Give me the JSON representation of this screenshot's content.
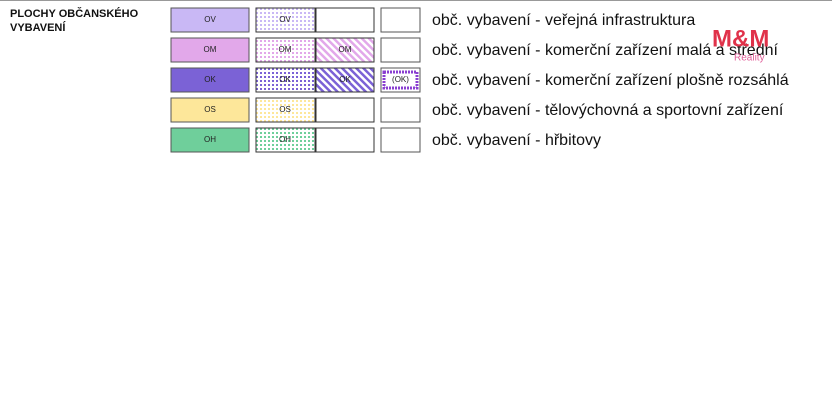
{
  "heading": [
    "PLOCHY OBČANSKÉHO",
    "VYBAVENÍ"
  ],
  "rows": [
    {
      "solid": "OV",
      "dotted": "OV",
      "color": "#c9b8f5",
      "description": "obč. vybavení - veřejná infrastruktura"
    },
    {
      "solid": "OM",
      "dotted": "OM",
      "hatched": "OM",
      "color": "#e2a8ea",
      "description": "obč. vybavení - komerční zařízení malá a střední"
    },
    {
      "solid": "OK",
      "dotted": "OK",
      "hatched": "OK",
      "special": "(OK)",
      "color": "#7b62d6",
      "description": "obč. vybavení - komerční zařízení plošně rozsáhlá"
    },
    {
      "solid": "OS",
      "dotted": "OS",
      "color": "#fde79a",
      "description": "obč. vybavení - tělovýchovná a sportovní zařízení"
    },
    {
      "solid": "OH",
      "dotted": "OH",
      "color": "#6fcf9b",
      "description": "obč. vybavení - hřbitovy"
    }
  ],
  "watermark": {
    "logo": "M&M",
    "sub": "Reality"
  }
}
